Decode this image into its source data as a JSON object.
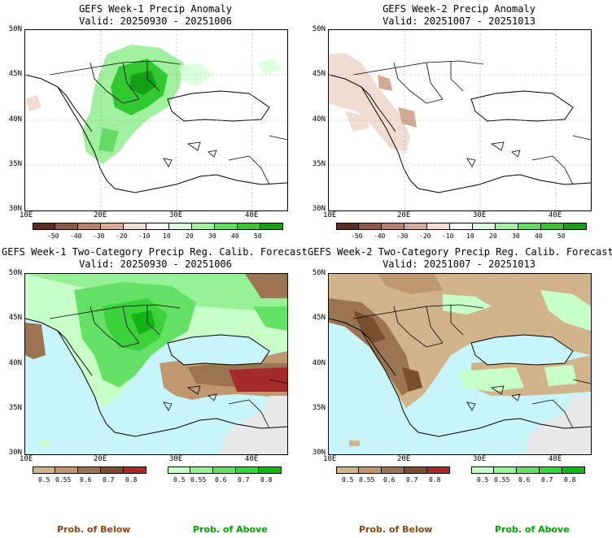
{
  "panels": [
    {
      "title": "GEFS Week-1 Precip Anomaly",
      "valid": "Valid: 20250930 - 20251006"
    },
    {
      "title": "GEFS Week-2 Precip Anomaly",
      "valid": "Valid: 20251007 - 20251013"
    },
    {
      "title": "GEFS Week-1 Two-Category Precip Reg. Calib. Forecast",
      "valid": "Valid: 20250930 - 20251006"
    },
    {
      "title": "GEFS Week-2 Two-Category Precip Reg. Calib. Forecast",
      "valid": "Valid: 20251007 - 20251013"
    }
  ],
  "axes": {
    "lat": [
      "50N",
      "45N",
      "40N",
      "35N",
      "30N"
    ],
    "lon": [
      "10E",
      "20E",
      "30E",
      "40E"
    ]
  },
  "anomaly_colorbar": {
    "labels": [
      "-50",
      "-40",
      "-30",
      "-20",
      "-10",
      "10",
      "20",
      "30",
      "40",
      "50"
    ],
    "colors": [
      "#5a2d1e",
      "#8c5a46",
      "#b4826e",
      "#d2aa96",
      "#f0dcd2",
      "#ffffff",
      "#dcffdc",
      "#a0f0a0",
      "#64dc64",
      "#32c832",
      "#14a014"
    ]
  },
  "prob_below_colorbar": {
    "labels": [
      "0.5",
      "0.55",
      "0.6",
      "0.7",
      "0.8"
    ],
    "colors": [
      "#d2b48c",
      "#c09870",
      "#9b7553",
      "#7a4f30",
      "#a52a2a"
    ]
  },
  "prob_above_colorbar": {
    "labels": [
      "0.5",
      "0.55",
      "0.6",
      "0.7",
      "0.8"
    ],
    "colors": [
      "#c8ffc8",
      "#96f096",
      "#64e164",
      "#3cd23c",
      "#14b414"
    ]
  },
  "footer": {
    "below_left": "Prob. of Below",
    "above_left": "Prob. of Above",
    "below_right": "Prob. of Below",
    "above_right": "Prob. of Above",
    "below_color": "#8b4513",
    "above_color": "#00a000"
  },
  "colors": {
    "sea": "#c8f5fa",
    "land_empty": "#e8e8e8"
  }
}
